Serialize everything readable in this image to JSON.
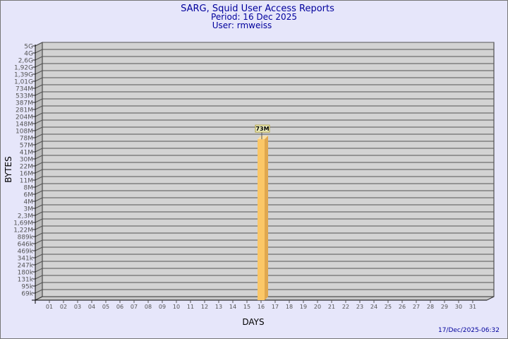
{
  "chart_data": {
    "type": "bar",
    "title": "SARG, Squid User Access Reports",
    "subtitle": [
      "Period: 16 Dec 2025",
      "User: rmweiss"
    ],
    "xlabel": "DAYS",
    "ylabel": "BYTES",
    "y_scale": "log",
    "y_tick_labels": [
      "5G",
      "4G",
      "2,6G",
      "1,92G",
      "1,39G",
      "1,01G",
      "734M",
      "533M",
      "387M",
      "281M",
      "204M",
      "148M",
      "108M",
      "78M",
      "57M",
      "41M",
      "30M",
      "22M",
      "16M",
      "11M",
      "8M",
      "6M",
      "4M",
      "3M",
      "2,3M",
      "1,69M",
      "1,22M",
      "889k",
      "646k",
      "469k",
      "341k",
      "247k",
      "180k",
      "131k",
      "95k",
      "69k"
    ],
    "categories": [
      "01",
      "02",
      "03",
      "04",
      "05",
      "06",
      "07",
      "08",
      "09",
      "10",
      "11",
      "12",
      "13",
      "14",
      "15",
      "16",
      "17",
      "18",
      "19",
      "20",
      "21",
      "22",
      "23",
      "24",
      "25",
      "26",
      "27",
      "28",
      "29",
      "30",
      "31"
    ],
    "bars": [
      {
        "category": "16",
        "value": 73000000,
        "label": "73M"
      }
    ],
    "grid": true,
    "colors": {
      "background": "#e6e6fa",
      "plot": "#d3d3d3",
      "bar": "#fbc767",
      "bar_side": "#e0a84f",
      "title": "#00009c",
      "label_box": "#f0f0c0"
    }
  },
  "footer": {
    "timestamp": "17/Dec/2025-06:32"
  }
}
